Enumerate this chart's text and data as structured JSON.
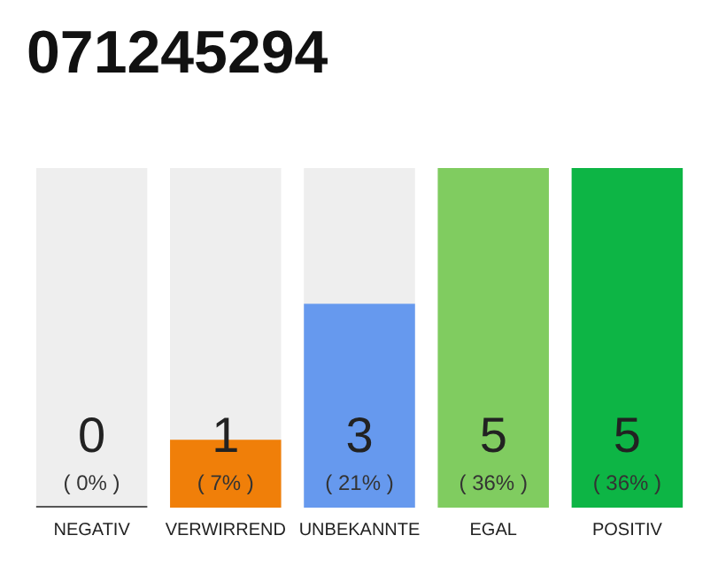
{
  "chart_data": {
    "type": "bar",
    "title": "071245294",
    "categories": [
      "NEGATIV",
      "VERWIRREND",
      "UNBEKANNTE",
      "EGAL",
      "POSITIV"
    ],
    "values": [
      0,
      1,
      3,
      5,
      5
    ],
    "colors": [
      "#555555",
      "#f07f09",
      "#6699ee",
      "#80cc60",
      "#0db545"
    ],
    "value_labels": [
      "0\n( 0% )",
      "1\n( 7% )",
      "3\n( 21% )",
      "5\n( 36% )",
      "5\n( 36% )"
    ]
  }
}
